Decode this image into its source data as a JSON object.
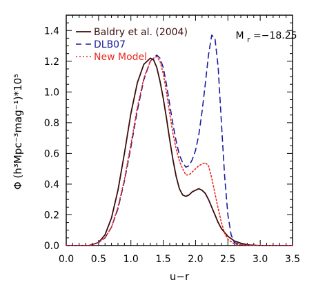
{
  "chart_data": {
    "type": "line",
    "xlabel": "u−r",
    "ylabel": "Φ (h³Mpc⁻³mag⁻¹)*10⁵",
    "xlim": [
      0.0,
      3.5
    ],
    "ylim": [
      0.0,
      1.5
    ],
    "x_ticks": [
      "0.0",
      "0.5",
      "1.0",
      "1.5",
      "2.0",
      "2.5",
      "3.0",
      "3.5"
    ],
    "y_ticks": [
      "0.0",
      "0.2",
      "0.4",
      "0.6",
      "0.8",
      "1.0",
      "1.2",
      "1.4"
    ],
    "annotation": "Mr=−18.25",
    "annotation_parts": {
      "main": "M",
      "sub": "r",
      "value": "=−18.25"
    },
    "legend_position": "top-left",
    "series": [
      {
        "name": "Baldry et al. (2004)",
        "color": "#3a0a0a",
        "style": "solid",
        "x": [
          0.0,
          0.35,
          0.5,
          0.6,
          0.7,
          0.8,
          0.9,
          1.0,
          1.1,
          1.2,
          1.3,
          1.35,
          1.4,
          1.45,
          1.5,
          1.55,
          1.6,
          1.65,
          1.7,
          1.75,
          1.8,
          1.85,
          1.9,
          1.95,
          2.0,
          2.05,
          2.1,
          2.15,
          2.2,
          2.25,
          2.3,
          2.35,
          2.4,
          2.5,
          2.6,
          2.7,
          2.8,
          3.0,
          3.5
        ],
        "y": [
          0.0,
          0.0,
          0.02,
          0.07,
          0.18,
          0.36,
          0.6,
          0.86,
          1.06,
          1.18,
          1.22,
          1.21,
          1.16,
          1.07,
          0.96,
          0.83,
          0.69,
          0.56,
          0.45,
          0.37,
          0.33,
          0.32,
          0.33,
          0.35,
          0.36,
          0.37,
          0.36,
          0.34,
          0.3,
          0.25,
          0.2,
          0.15,
          0.11,
          0.06,
          0.03,
          0.015,
          0.005,
          0.0,
          0.0
        ]
      },
      {
        "name": "DLB07",
        "color": "#1a1a9c",
        "style": "dashed",
        "x": [
          0.0,
          0.35,
          0.5,
          0.6,
          0.7,
          0.8,
          0.9,
          1.0,
          1.1,
          1.2,
          1.3,
          1.35,
          1.4,
          1.45,
          1.5,
          1.55,
          1.6,
          1.65,
          1.7,
          1.75,
          1.8,
          1.85,
          1.9,
          1.95,
          2.0,
          2.05,
          2.1,
          2.15,
          2.2,
          2.25,
          2.3,
          2.35,
          2.4,
          2.45,
          2.5,
          2.55,
          2.6,
          2.7,
          3.0,
          3.5
        ],
        "y": [
          0.0,
          0.0,
          0.02,
          0.05,
          0.12,
          0.24,
          0.42,
          0.64,
          0.88,
          1.08,
          1.2,
          1.22,
          1.24,
          1.22,
          1.16,
          1.05,
          0.92,
          0.79,
          0.68,
          0.59,
          0.54,
          0.51,
          0.52,
          0.56,
          0.62,
          0.72,
          0.87,
          1.05,
          1.24,
          1.37,
          1.35,
          1.16,
          0.8,
          0.45,
          0.2,
          0.07,
          0.02,
          0.005,
          0.0,
          0.0
        ]
      },
      {
        "name": "New Model",
        "color": "#e8281e",
        "style": "dotted",
        "x": [
          0.0,
          0.35,
          0.5,
          0.6,
          0.7,
          0.8,
          0.9,
          1.0,
          1.1,
          1.2,
          1.3,
          1.35,
          1.4,
          1.45,
          1.5,
          1.55,
          1.6,
          1.65,
          1.7,
          1.75,
          1.8,
          1.85,
          1.9,
          1.95,
          2.0,
          2.05,
          2.1,
          2.15,
          2.2,
          2.25,
          2.3,
          2.35,
          2.4,
          2.45,
          2.5,
          2.6,
          2.7,
          3.0,
          3.5
        ],
        "y": [
          0.0,
          0.0,
          0.02,
          0.05,
          0.12,
          0.25,
          0.43,
          0.66,
          0.9,
          1.09,
          1.2,
          1.22,
          1.23,
          1.2,
          1.12,
          1.0,
          0.86,
          0.73,
          0.63,
          0.55,
          0.5,
          0.46,
          0.46,
          0.48,
          0.5,
          0.52,
          0.53,
          0.54,
          0.52,
          0.44,
          0.34,
          0.24,
          0.15,
          0.08,
          0.04,
          0.01,
          0.005,
          0.0,
          0.0
        ]
      }
    ]
  }
}
